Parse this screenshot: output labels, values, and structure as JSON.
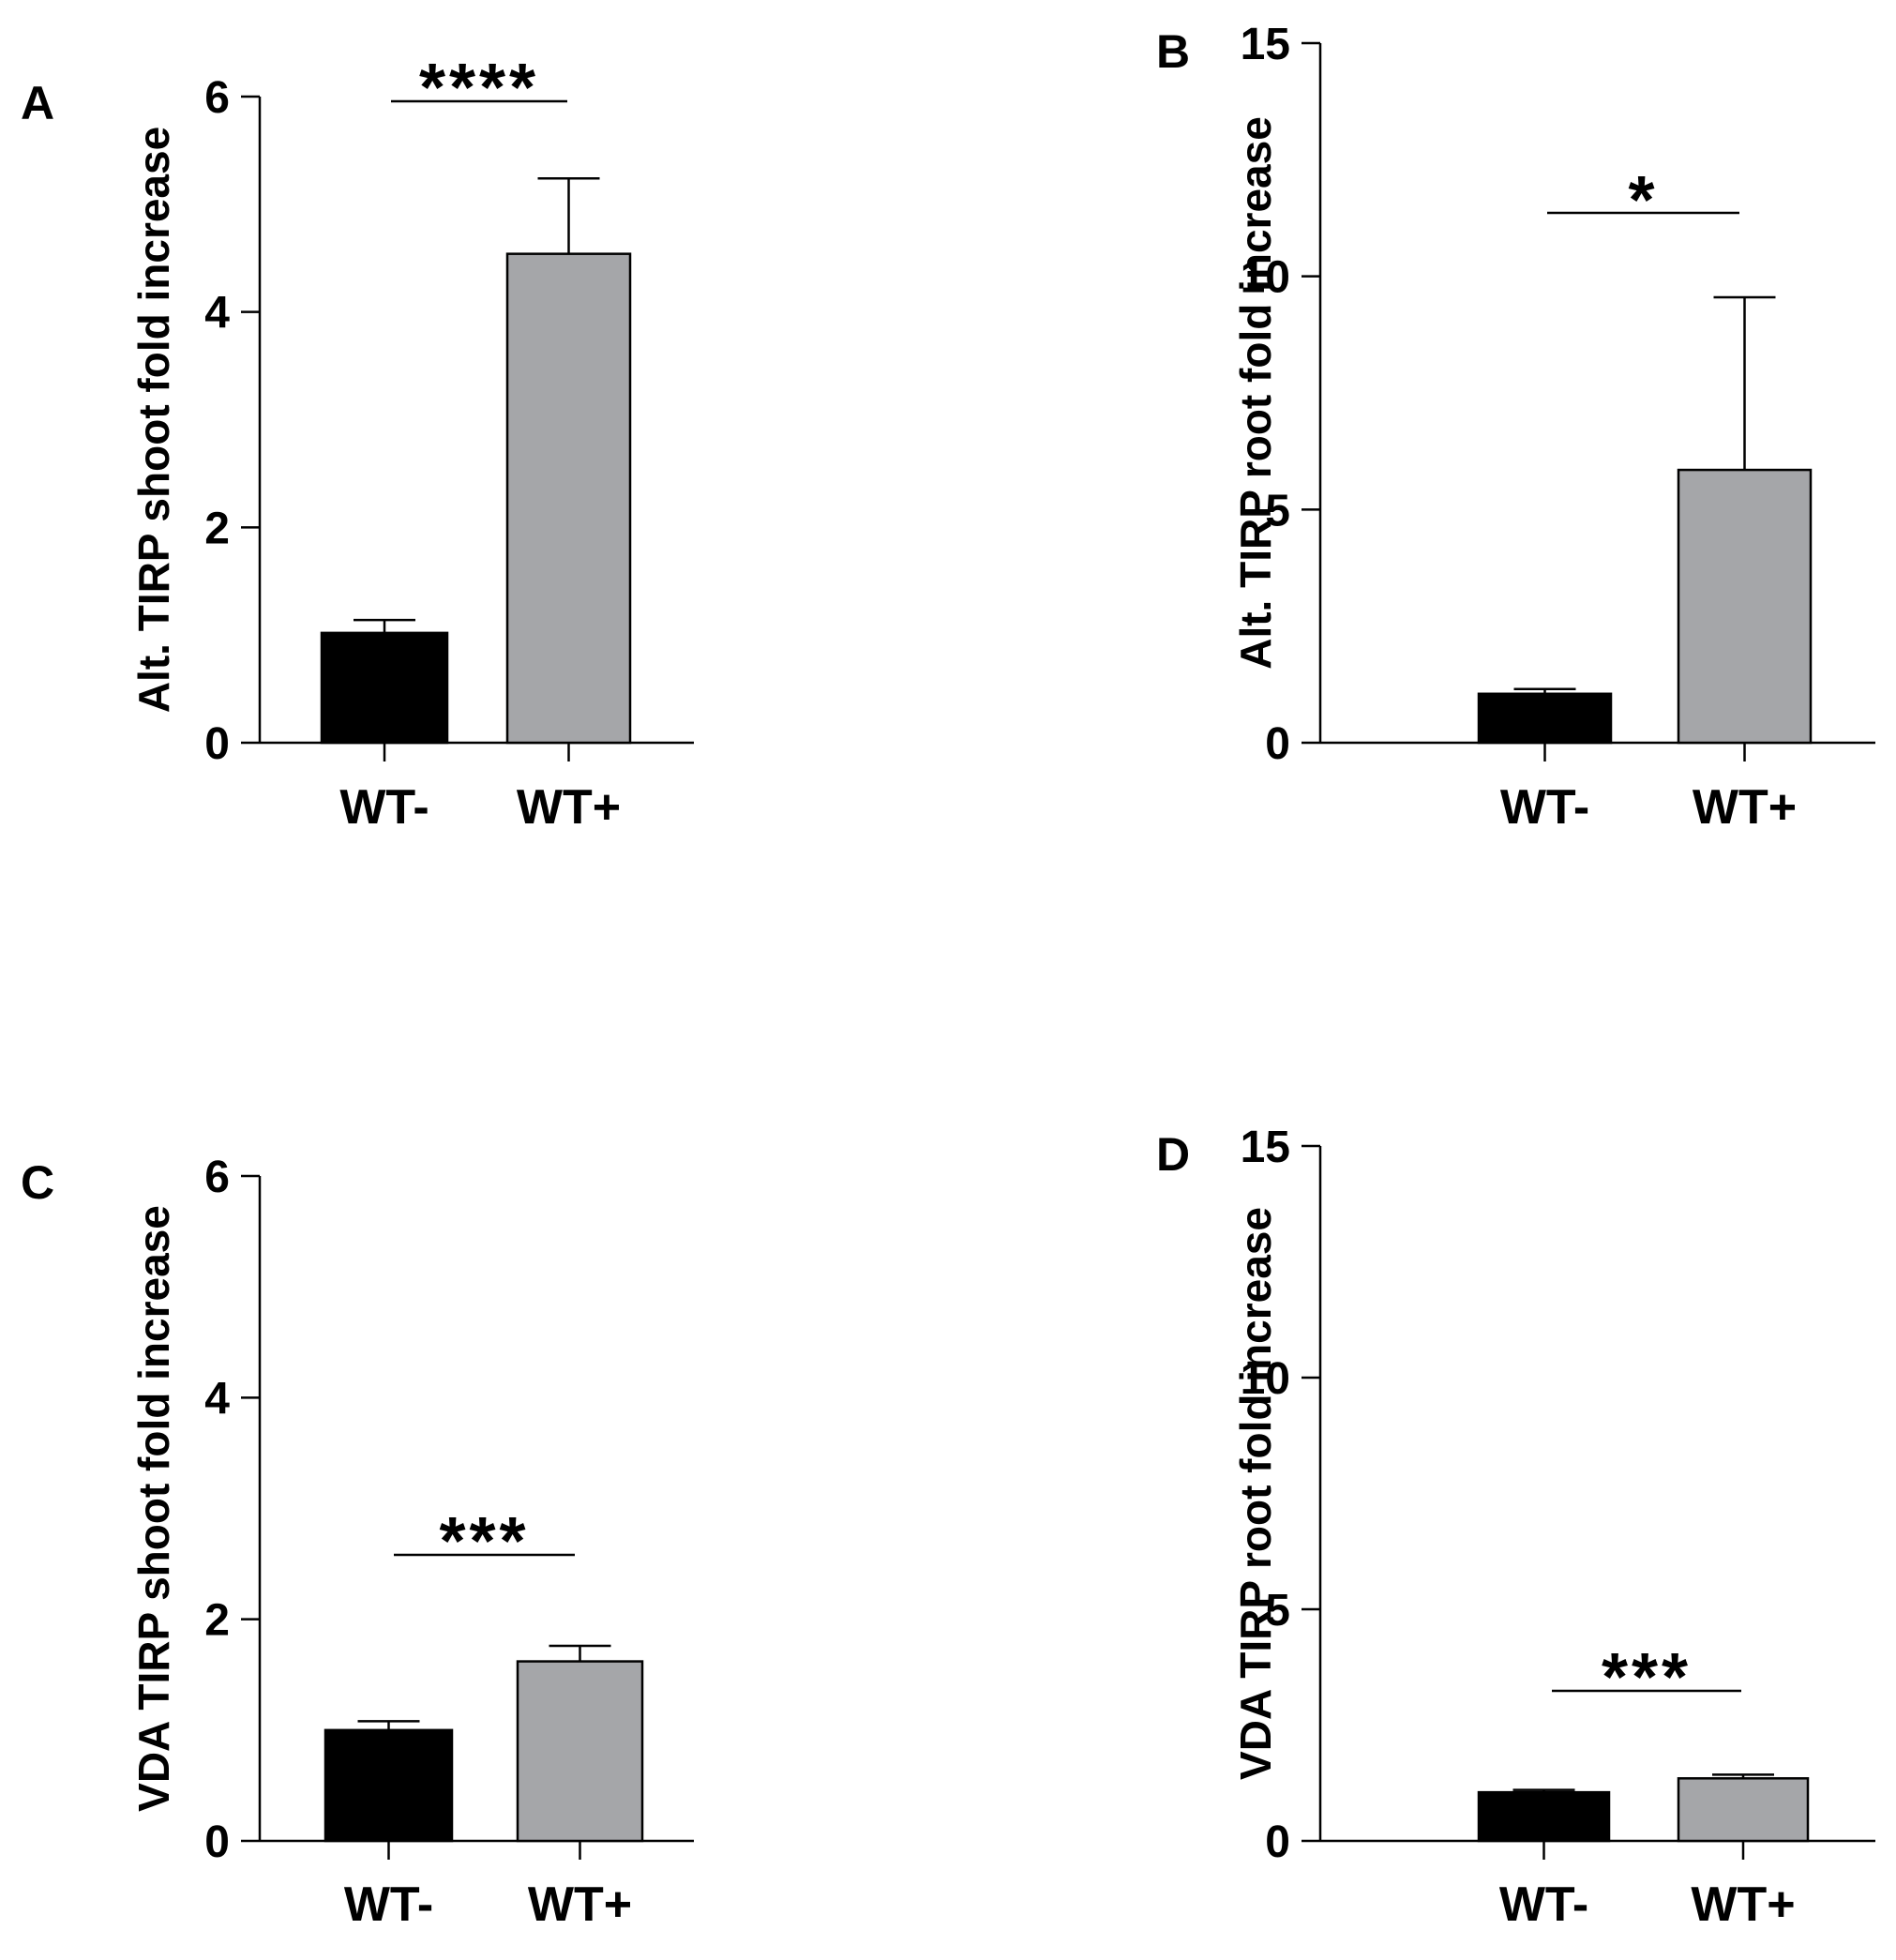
{
  "colors": {
    "wt_minus": "#000000",
    "wt_plus": "#a5a6a9",
    "axis": "#000000"
  },
  "chart_data": [
    {
      "type": "bar",
      "panel": "A",
      "categories": [
        "WT-",
        "WT+"
      ],
      "values": [
        1.02,
        4.54
      ],
      "errors": [
        0.12,
        0.7
      ],
      "xlabel": "",
      "ylabel": "Alt. TIRP shoot fold increase",
      "ylim": [
        0,
        6
      ],
      "yticks": [
        0,
        2,
        4,
        6
      ],
      "significance": "****",
      "grid": false
    },
    {
      "type": "bar",
      "panel": "B",
      "categories": [
        "WT-",
        "WT+"
      ],
      "values": [
        1.05,
        5.85
      ],
      "errors": [
        0.1,
        3.7
      ],
      "xlabel": "",
      "ylabel": "Alt. TIRP root fold increase",
      "ylim": [
        0,
        15
      ],
      "yticks": [
        0,
        5,
        10,
        15
      ],
      "significance": "*",
      "grid": false
    },
    {
      "type": "bar",
      "panel": "C",
      "categories": [
        "WT-",
        "WT+"
      ],
      "values": [
        1.0,
        1.62
      ],
      "errors": [
        0.08,
        0.14
      ],
      "xlabel": "",
      "ylabel": "VDA TIRP shoot fold increase",
      "ylim": [
        0,
        6
      ],
      "yticks": [
        0,
        2,
        4,
        6
      ],
      "significance": "***",
      "grid": false
    },
    {
      "type": "bar",
      "panel": "D",
      "categories": [
        "WT-",
        "WT+"
      ],
      "values": [
        1.05,
        1.35
      ],
      "errors": [
        0.05,
        0.08
      ],
      "xlabel": "",
      "ylabel": "VDA TIRP root fold increase",
      "ylim": [
        0,
        15
      ],
      "yticks": [
        0,
        5,
        10,
        15
      ],
      "significance": "***",
      "grid": false
    }
  ]
}
